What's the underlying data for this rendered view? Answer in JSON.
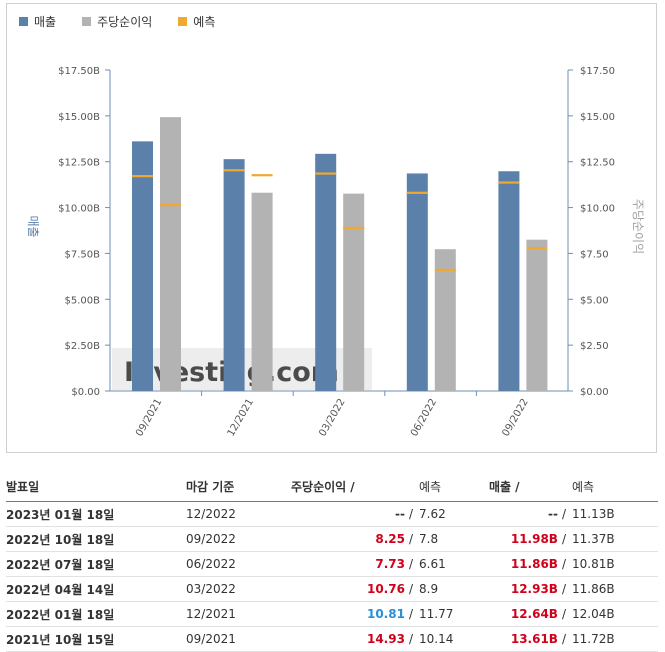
{
  "colors": {
    "revenue": "#5b80aa",
    "eps": "#b3b3b3",
    "forecast": "#f0a830",
    "beat": "#d0021b",
    "miss": "#2a8fd8",
    "neutral": "#333333"
  },
  "legend": {
    "revenue": "매출",
    "eps": "주당순이익",
    "forecast": "예측"
  },
  "chart_data": {
    "type": "bar",
    "categories": [
      "09/2021",
      "12/2021",
      "03/2022",
      "06/2022",
      "09/2022"
    ],
    "series": [
      {
        "name": "매출",
        "axis": "left",
        "values": [
          13.61,
          12.64,
          12.93,
          11.86,
          11.98
        ],
        "forecast": [
          11.72,
          12.04,
          11.86,
          10.81,
          11.37
        ]
      },
      {
        "name": "주당순이익",
        "axis": "right",
        "values": [
          14.93,
          10.81,
          10.76,
          7.73,
          8.25
        ],
        "forecast": [
          10.14,
          11.77,
          8.9,
          6.61,
          7.8
        ]
      }
    ],
    "ylabel": "매출",
    "ylabel_right": "주당순이익",
    "ylim": [
      0,
      17.5
    ],
    "y2lim": [
      0,
      17.5
    ],
    "yticks": [
      "$0.00",
      "$2.50B",
      "$5.00B",
      "$7.50B",
      "$10.00B",
      "$12.50B",
      "$15.00B",
      "$17.50B"
    ],
    "y2ticks": [
      "$0.00",
      "$2.50",
      "$5.00",
      "$7.50",
      "$10.00",
      "$12.50",
      "$15.00",
      "$17.50"
    ],
    "watermark": "Investing.com"
  },
  "table": {
    "headers": {
      "date": "발표일",
      "period": "마감 기준",
      "eps": "주당순이익",
      "eps_forecast": "예측",
      "revenue": "매출",
      "revenue_forecast": "예측"
    },
    "rows": [
      {
        "date": "2023년 01월 18일",
        "period": "12/2022",
        "eps": "--",
        "eps_status": "neutral",
        "eps_forecast": "7.62",
        "revenue": "--",
        "rev_status": "neutral",
        "revenue_forecast": "11.13B"
      },
      {
        "date": "2022년 10월 18일",
        "period": "09/2022",
        "eps": "8.25",
        "eps_status": "beat",
        "eps_forecast": "7.8",
        "revenue": "11.98B",
        "rev_status": "beat",
        "revenue_forecast": "11.37B"
      },
      {
        "date": "2022년 07월 18일",
        "period": "06/2022",
        "eps": "7.73",
        "eps_status": "beat",
        "eps_forecast": "6.61",
        "revenue": "11.86B",
        "rev_status": "beat",
        "revenue_forecast": "10.81B"
      },
      {
        "date": "2022년 04월 14일",
        "period": "03/2022",
        "eps": "10.76",
        "eps_status": "beat",
        "eps_forecast": "8.9",
        "revenue": "12.93B",
        "rev_status": "beat",
        "revenue_forecast": "11.86B"
      },
      {
        "date": "2022년 01월 18일",
        "period": "12/2021",
        "eps": "10.81",
        "eps_status": "miss",
        "eps_forecast": "11.77",
        "revenue": "12.64B",
        "rev_status": "beat",
        "revenue_forecast": "12.04B"
      },
      {
        "date": "2021년 10월 15일",
        "period": "09/2021",
        "eps": "14.93",
        "eps_status": "beat",
        "eps_forecast": "10.14",
        "revenue": "13.61B",
        "rev_status": "beat",
        "revenue_forecast": "11.72B"
      }
    ]
  }
}
